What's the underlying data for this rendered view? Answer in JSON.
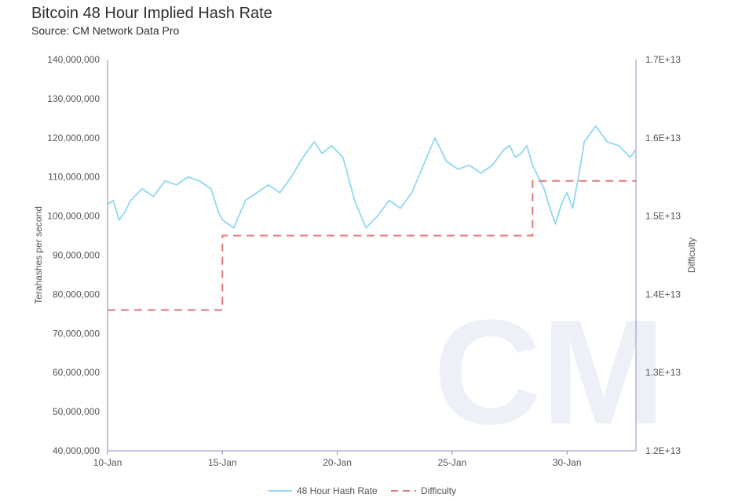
{
  "title": "Bitcoin 48 Hour Implied Hash Rate",
  "subtitle": "Source: CM Network Data Pro",
  "watermark": "CM",
  "colors": {
    "hash_rate": "#8fd8f0",
    "difficulty": "#e37777",
    "axis": "#8a8fbf",
    "watermark": "#eef0f7"
  },
  "chart_data": {
    "type": "line",
    "title": "Bitcoin 48 Hour Implied Hash Rate",
    "subtitle": "Source: CM Network Data Pro",
    "ylabel": "Terahashes per second",
    "y2label": "Difficulty",
    "x_ticks": [
      "10-Jan",
      "15-Jan",
      "20-Jan",
      "25-Jan",
      "30-Jan"
    ],
    "xlim": [
      "2020-01-10",
      "2020-02-02"
    ],
    "ylim": [
      40000000,
      140000000
    ],
    "y_ticks": [
      "40,000,000",
      "50,000,000",
      "60,000,000",
      "70,000,000",
      "80,000,000",
      "90,000,000",
      "100,000,000",
      "110,000,000",
      "120,000,000",
      "130,000,000",
      "140,000,000"
    ],
    "y2lim": [
      12000000000000.0,
      17000000000000.0
    ],
    "y2_ticks": [
      "1.2E+13",
      "1.3E+13",
      "1.4E+13",
      "1.5E+13",
      "1.6E+13",
      "1.7E+13"
    ],
    "grid": false,
    "legend_position": "bottom",
    "series": [
      {
        "name": "48 Hour Hash Rate",
        "axis": "left",
        "style": "solid",
        "x": [
          "2020-01-10 00:00",
          "2020-01-10 06:00",
          "2020-01-10 12:00",
          "2020-01-10 18:00",
          "2020-01-11 00:00",
          "2020-01-11 12:00",
          "2020-01-12 00:00",
          "2020-01-12 12:00",
          "2020-01-13 00:00",
          "2020-01-13 12:00",
          "2020-01-14 00:00",
          "2020-01-14 12:00",
          "2020-01-14 20:00",
          "2020-01-15 00:00",
          "2020-01-15 12:00",
          "2020-01-16 00:00",
          "2020-01-16 12:00",
          "2020-01-17 00:00",
          "2020-01-17 12:00",
          "2020-01-18 00:00",
          "2020-01-18 12:00",
          "2020-01-19 00:00",
          "2020-01-19 08:00",
          "2020-01-19 18:00",
          "2020-01-20 06:00",
          "2020-01-20 18:00",
          "2020-01-21 06:00",
          "2020-01-21 18:00",
          "2020-01-22 06:00",
          "2020-01-22 18:00",
          "2020-01-23 06:00",
          "2020-01-23 18:00",
          "2020-01-24 06:00",
          "2020-01-24 18:00",
          "2020-01-25 06:00",
          "2020-01-25 18:00",
          "2020-01-26 06:00",
          "2020-01-26 18:00",
          "2020-01-27 06:00",
          "2020-01-27 12:00",
          "2020-01-27 18:00",
          "2020-01-28 00:00",
          "2020-01-28 06:00",
          "2020-01-28 12:00",
          "2020-01-28 18:00",
          "2020-01-29 00:00",
          "2020-01-29 06:00",
          "2020-01-29 12:00",
          "2020-01-29 18:00",
          "2020-01-30 00:00",
          "2020-01-30 06:00",
          "2020-01-30 12:00",
          "2020-01-30 18:00",
          "2020-01-31 06:00",
          "2020-01-31 18:00",
          "2020-02-01 06:00",
          "2020-02-01 18:00",
          "2020-02-02 00:00"
        ],
        "values": [
          103000000,
          104000000,
          99000000,
          101000000,
          104000000,
          107000000,
          105000000,
          109000000,
          108000000,
          110000000,
          109000000,
          107000000,
          101000000,
          99000000,
          97000000,
          104000000,
          106000000,
          108000000,
          106000000,
          110000000,
          115000000,
          119000000,
          116000000,
          118000000,
          115000000,
          104000000,
          97000000,
          100000000,
          104000000,
          102000000,
          106000000,
          113000000,
          120000000,
          114000000,
          112000000,
          113000000,
          111000000,
          113000000,
          117000000,
          118000000,
          115000000,
          116000000,
          118000000,
          113000000,
          110000000,
          107000000,
          102000000,
          98000000,
          103000000,
          106000000,
          102000000,
          110000000,
          119000000,
          123000000,
          119000000,
          118000000,
          115000000,
          117000000
        ]
      },
      {
        "name": "Difficulty",
        "axis": "right",
        "style": "dashed",
        "x": [
          "2020-01-10 00:00",
          "2020-01-15 00:00",
          "2020-01-15 00:00",
          "2020-01-28 12:00",
          "2020-01-28 12:00",
          "2020-02-02 00:00"
        ],
        "values": [
          13800000000000.0,
          13800000000000.0,
          14750000000000.0,
          14750000000000.0,
          15450000000000.0,
          15450000000000.0
        ]
      }
    ]
  }
}
